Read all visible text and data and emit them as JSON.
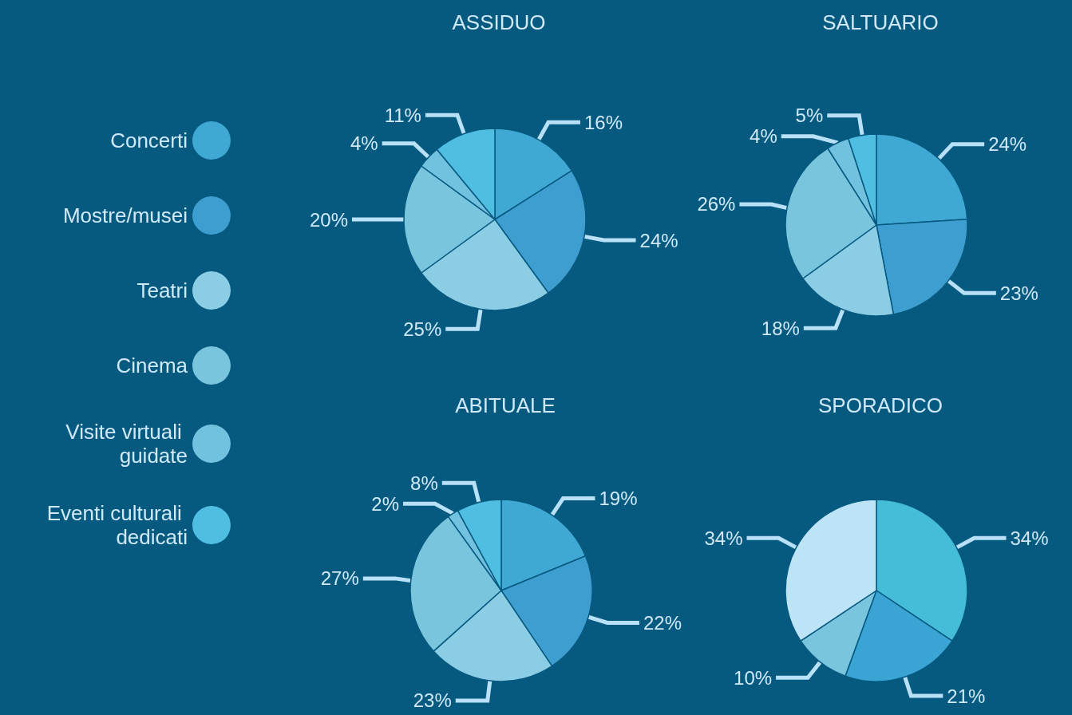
{
  "chart_data": [
    {
      "type": "pie",
      "title": "ASSIDUO",
      "legend": "left",
      "categories": [
        "Concerti",
        "Mostre/musei",
        "Teatri",
        "Cinema",
        "Visite virtuali guidate",
        "Eventi culturali dedicati"
      ],
      "values": [
        16,
        24,
        25,
        20,
        4,
        11
      ],
      "value_labels": [
        "16%",
        "24%",
        "25%",
        "20%",
        "4%",
        "11%"
      ],
      "colors": [
        "#40a9d3",
        "#3e9ecf",
        "#8ccde6",
        "#7ac5de",
        "#72c1de",
        "#4fbee0"
      ]
    },
    {
      "type": "pie",
      "title": "SALTUARIO",
      "categories": [
        null,
        null,
        null,
        null,
        null,
        null
      ],
      "values": [
        24,
        23,
        18,
        26,
        4,
        5
      ],
      "value_labels": [
        "24%",
        "23%",
        "18%",
        "26%",
        "4%",
        "5%"
      ],
      "colors": [
        "#40a9d3",
        "#3e9ecf",
        "#8ccde6",
        "#7ac5de",
        "#72c1de",
        "#4fbee0"
      ]
    },
    {
      "type": "pie",
      "title": "ABITUALE",
      "categories": [
        null,
        null,
        null,
        null,
        null,
        null
      ],
      "values": [
        19,
        22,
        23,
        27,
        2,
        8
      ],
      "value_labels": [
        "19%",
        "22%",
        "23%",
        "27%",
        "2%",
        "8%"
      ],
      "colors": [
        "#40a9d3",
        "#3e9ecf",
        "#8ccde6",
        "#7ac5de",
        "#72c1de",
        "#4fbee0"
      ]
    },
    {
      "type": "pie",
      "title": "SPORADICO",
      "categories": [
        null,
        null,
        null,
        null
      ],
      "values": [
        34,
        21,
        10,
        34
      ],
      "value_labels": [
        "34%",
        "21%",
        "10%",
        "34%"
      ],
      "colors": [
        "#45bdd8",
        "#3aa5d4",
        "#7ac5de",
        "#bde3f7"
      ]
    }
  ]
}
